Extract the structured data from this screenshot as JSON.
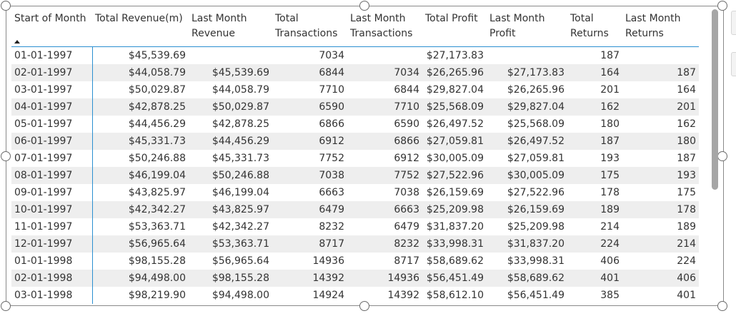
{
  "table": {
    "columns": [
      "Start of Month",
      "Total Revenue(m)",
      "Last Month Revenue",
      "Total Transactions",
      "Last Month Transactions",
      "Total Profit",
      "Last Month Profit",
      "Total Returns",
      "Last Month Returns"
    ],
    "sort": {
      "column": "Start of Month",
      "direction": "ascending"
    },
    "rows": [
      [
        "01-01-1997",
        "$45,539.69",
        "",
        "7034",
        "",
        "$27,173.83",
        "",
        "187",
        ""
      ],
      [
        "02-01-1997",
        "$44,058.79",
        "$45,539.69",
        "6844",
        "7034",
        "$26,265.96",
        "$27,173.83",
        "164",
        "187"
      ],
      [
        "03-01-1997",
        "$50,029.87",
        "$44,058.79",
        "7710",
        "6844",
        "$29,827.04",
        "$26,265.96",
        "201",
        "164"
      ],
      [
        "04-01-1997",
        "$42,878.25",
        "$50,029.87",
        "6590",
        "7710",
        "$25,568.09",
        "$29,827.04",
        "162",
        "201"
      ],
      [
        "05-01-1997",
        "$44,456.29",
        "$42,878.25",
        "6866",
        "6590",
        "$26,497.52",
        "$25,568.09",
        "180",
        "162"
      ],
      [
        "06-01-1997",
        "$45,331.73",
        "$44,456.29",
        "6912",
        "6866",
        "$27,059.81",
        "$26,497.52",
        "187",
        "180"
      ],
      [
        "07-01-1997",
        "$50,246.88",
        "$45,331.73",
        "7752",
        "6912",
        "$30,005.09",
        "$27,059.81",
        "193",
        "187"
      ],
      [
        "08-01-1997",
        "$46,199.04",
        "$50,246.88",
        "7038",
        "7752",
        "$27,522.96",
        "$30,005.09",
        "175",
        "193"
      ],
      [
        "09-01-1997",
        "$43,825.97",
        "$46,199.04",
        "6663",
        "7038",
        "$26,159.69",
        "$27,522.96",
        "178",
        "175"
      ],
      [
        "10-01-1997",
        "$42,342.27",
        "$43,825.97",
        "6479",
        "6663",
        "$25,209.98",
        "$26,159.69",
        "189",
        "178"
      ],
      [
        "11-01-1997",
        "$53,363.71",
        "$42,342.27",
        "8232",
        "6479",
        "$31,837.20",
        "$25,209.98",
        "214",
        "189"
      ],
      [
        "12-01-1997",
        "$56,965.64",
        "$53,363.71",
        "8717",
        "8232",
        "$33,998.31",
        "$31,837.20",
        "224",
        "214"
      ],
      [
        "01-01-1998",
        "$98,155.28",
        "$56,965.64",
        "14936",
        "8717",
        "$58,689.62",
        "$33,998.31",
        "406",
        "224"
      ],
      [
        "02-01-1998",
        "$94,498.00",
        "$98,155.28",
        "14392",
        "14936",
        "$56,451.49",
        "$58,689.62",
        "401",
        "406"
      ],
      [
        "03-01-1998",
        "$98,219.90",
        "$94,498.00",
        "14924",
        "14392",
        "$58,612.10",
        "$56,451.49",
        "385",
        "401"
      ]
    ]
  },
  "colors": {
    "accent": "#2b8fd1",
    "row_alt": "#eeeeee",
    "text": "#333333"
  }
}
